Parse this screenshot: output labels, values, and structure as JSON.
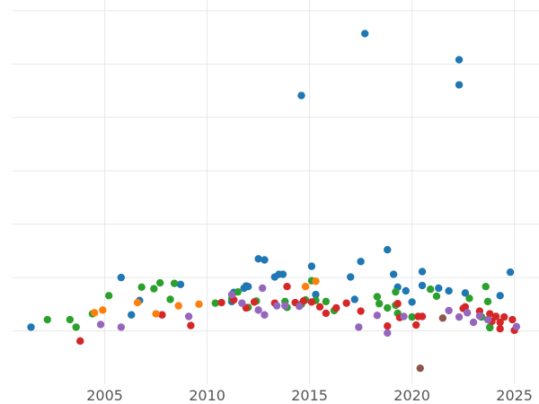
{
  "chart_data": {
    "type": "scatter",
    "title": "",
    "xlabel": "",
    "ylabel": "",
    "grid": true,
    "xlim": [
      2000.5,
      2026.2
    ],
    "ylim": [
      0,
      7.2
    ],
    "x_ticks": [
      2005,
      2010,
      2015,
      2020,
      2025
    ],
    "y_gridlines": [
      1,
      2,
      3,
      4,
      5,
      6,
      7
    ],
    "series_colors": [
      "#1f77b4",
      "#2ca02c",
      "#d62728",
      "#9467bd",
      "#ff7f0e",
      "#8c564b"
    ],
    "series": [
      {
        "points": [
          [
            2001.4,
            1.07
          ],
          [
            2005.8,
            2.0
          ],
          [
            2006.3,
            1.3
          ],
          [
            2006.7,
            1.57
          ],
          [
            2008.7,
            1.87
          ],
          [
            2011.2,
            1.55
          ],
          [
            2011.3,
            1.72
          ],
          [
            2011.8,
            1.8
          ],
          [
            2011.9,
            1.84
          ],
          [
            2012.0,
            1.83
          ],
          [
            2012.5,
            2.35
          ],
          [
            2012.8,
            2.33
          ],
          [
            2013.3,
            2.01
          ],
          [
            2013.5,
            2.06
          ],
          [
            2013.7,
            2.06
          ],
          [
            2014.6,
            5.41
          ],
          [
            2015.1,
            2.21
          ],
          [
            2015.3,
            1.68
          ],
          [
            2017.0,
            2.01
          ],
          [
            2017.2,
            1.59
          ],
          [
            2017.5,
            2.3
          ],
          [
            2017.7,
            6.57
          ],
          [
            2018.8,
            2.52
          ],
          [
            2019.1,
            2.06
          ],
          [
            2019.3,
            1.82
          ],
          [
            2019.7,
            1.75
          ],
          [
            2020.0,
            1.54
          ],
          [
            2020.5,
            2.11
          ],
          [
            2020.5,
            1.85
          ],
          [
            2021.3,
            1.8
          ],
          [
            2021.8,
            1.75
          ],
          [
            2022.3,
            6.08
          ],
          [
            2022.3,
            5.61
          ],
          [
            2022.6,
            1.71
          ],
          [
            2024.3,
            1.66
          ],
          [
            2024.8,
            2.1
          ]
        ]
      },
      {
        "points": [
          [
            2002.2,
            1.21
          ],
          [
            2003.3,
            1.21
          ],
          [
            2003.6,
            1.07
          ],
          [
            2004.4,
            1.32
          ],
          [
            2005.2,
            1.66
          ],
          [
            2006.8,
            1.82
          ],
          [
            2007.4,
            1.79
          ],
          [
            2007.7,
            1.9
          ],
          [
            2008.2,
            1.59
          ],
          [
            2008.4,
            1.89
          ],
          [
            2010.4,
            1.52
          ],
          [
            2011.2,
            1.6
          ],
          [
            2011.5,
            1.73
          ],
          [
            2012.0,
            1.44
          ],
          [
            2012.4,
            1.56
          ],
          [
            2013.8,
            1.55
          ],
          [
            2013.9,
            1.44
          ],
          [
            2014.6,
            1.5
          ],
          [
            2014.8,
            1.58
          ],
          [
            2015.1,
            1.94
          ],
          [
            2015.3,
            1.57
          ],
          [
            2015.8,
            1.55
          ],
          [
            2016.2,
            1.38
          ],
          [
            2018.3,
            1.64
          ],
          [
            2018.4,
            1.51
          ],
          [
            2018.8,
            1.43
          ],
          [
            2019.2,
            1.73
          ],
          [
            2019.2,
            1.48
          ],
          [
            2019.3,
            1.33
          ],
          [
            2020.0,
            1.26
          ],
          [
            2020.9,
            1.78
          ],
          [
            2021.2,
            1.65
          ],
          [
            2022.8,
            1.61
          ],
          [
            2023.4,
            1.26
          ],
          [
            2023.6,
            1.83
          ],
          [
            2023.7,
            1.55
          ],
          [
            2023.8,
            1.07
          ],
          [
            2023.8,
            1.06
          ]
        ]
      },
      {
        "points": [
          [
            2003.8,
            0.81
          ],
          [
            2007.8,
            1.3
          ],
          [
            2009.2,
            1.1
          ],
          [
            2010.7,
            1.53
          ],
          [
            2011.3,
            1.58
          ],
          [
            2011.9,
            1.43
          ],
          [
            2012.3,
            1.54
          ],
          [
            2013.3,
            1.52
          ],
          [
            2013.9,
            1.83
          ],
          [
            2014.3,
            1.53
          ],
          [
            2014.7,
            1.56
          ],
          [
            2015.1,
            1.54
          ],
          [
            2015.5,
            1.45
          ],
          [
            2015.8,
            1.33
          ],
          [
            2016.3,
            1.43
          ],
          [
            2016.8,
            1.52
          ],
          [
            2017.5,
            1.37
          ],
          [
            2018.8,
            1.09
          ],
          [
            2019.3,
            1.51
          ],
          [
            2019.4,
            1.25
          ],
          [
            2020.2,
            1.11
          ],
          [
            2020.3,
            1.27
          ],
          [
            2020.5,
            1.27
          ],
          [
            2022.5,
            1.42
          ],
          [
            2022.6,
            1.45
          ],
          [
            2023.3,
            1.37
          ],
          [
            2023.8,
            1.32
          ],
          [
            2023.9,
            1.18
          ],
          [
            2024.1,
            1.27
          ],
          [
            2024.3,
            1.16
          ],
          [
            2024.3,
            1.04
          ],
          [
            2024.5,
            1.26
          ],
          [
            2024.9,
            1.21
          ],
          [
            2025.0,
            1.01
          ]
        ]
      },
      {
        "points": [
          [
            2004.8,
            1.12
          ],
          [
            2005.8,
            1.07
          ],
          [
            2009.1,
            1.27
          ],
          [
            2011.2,
            1.68
          ],
          [
            2011.7,
            1.52
          ],
          [
            2012.5,
            1.39
          ],
          [
            2012.7,
            1.8
          ],
          [
            2012.8,
            1.3
          ],
          [
            2013.4,
            1.47
          ],
          [
            2013.8,
            1.47
          ],
          [
            2014.5,
            1.46
          ],
          [
            2017.4,
            1.07
          ],
          [
            2018.3,
            1.29
          ],
          [
            2018.8,
            0.96
          ],
          [
            2019.6,
            1.27
          ],
          [
            2021.8,
            1.38
          ],
          [
            2022.3,
            1.26
          ],
          [
            2022.7,
            1.34
          ],
          [
            2023.0,
            1.16
          ],
          [
            2023.3,
            1.28
          ],
          [
            2023.7,
            1.21
          ],
          [
            2025.1,
            1.08
          ]
        ]
      },
      {
        "points": [
          [
            2004.5,
            1.34
          ],
          [
            2004.9,
            1.39
          ],
          [
            2006.6,
            1.53
          ],
          [
            2007.5,
            1.32
          ],
          [
            2008.6,
            1.47
          ],
          [
            2009.6,
            1.5
          ],
          [
            2014.8,
            1.83
          ],
          [
            2015.3,
            1.93
          ]
        ]
      },
      {
        "points": [
          [
            2020.4,
            0.3
          ],
          [
            2021.5,
            1.24
          ]
        ]
      }
    ]
  }
}
